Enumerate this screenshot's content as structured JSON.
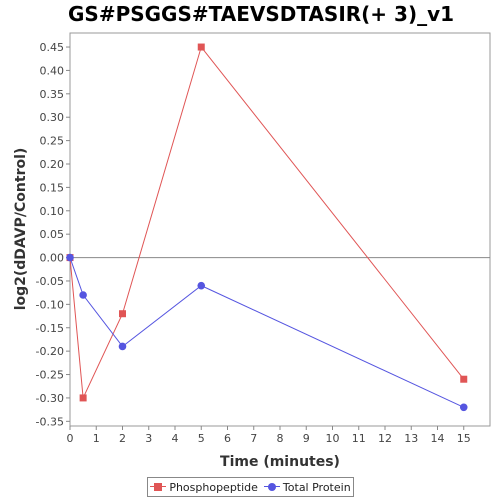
{
  "chart_data": {
    "type": "line",
    "title": "GS#PSGGS#TAEVSDTASIR(+ 3)_v1",
    "xlabel": "Time (minutes)",
    "ylabel": "log2(dDAVP/Control)",
    "xlim": [
      0,
      16
    ],
    "ylim": [
      -0.36,
      0.48
    ],
    "x_ticks": [
      0,
      1,
      2,
      3,
      4,
      5,
      6,
      7,
      8,
      9,
      10,
      11,
      12,
      13,
      14,
      15
    ],
    "y_ticks": [
      -0.35,
      -0.3,
      -0.25,
      -0.2,
      -0.15,
      -0.1,
      -0.05,
      0.0,
      0.05,
      0.1,
      0.15,
      0.2,
      0.25,
      0.3,
      0.35,
      0.4,
      0.45
    ],
    "y_tick_labels": [
      "-0.35",
      "-0.30",
      "-0.25",
      "-0.20",
      "-0.15",
      "-0.10",
      "-0.05",
      "0.00",
      "0.05",
      "0.10",
      "0.15",
      "0.20",
      "0.25",
      "0.30",
      "0.35",
      "0.40",
      "0.45"
    ],
    "grid": false,
    "zero_line": true,
    "legend_position": "bottom",
    "series": [
      {
        "name": "Phosphopeptide",
        "color": "#e05555",
        "marker": "square",
        "x": [
          0,
          0.5,
          2,
          5,
          15
        ],
        "y": [
          0.0,
          -0.3,
          -0.12,
          0.45,
          -0.26
        ]
      },
      {
        "name": "Total Protein",
        "color": "#5555e0",
        "marker": "circle",
        "x": [
          0,
          0.5,
          2,
          5,
          15
        ],
        "y": [
          0.0,
          -0.08,
          -0.19,
          -0.06,
          -0.32
        ]
      }
    ]
  }
}
